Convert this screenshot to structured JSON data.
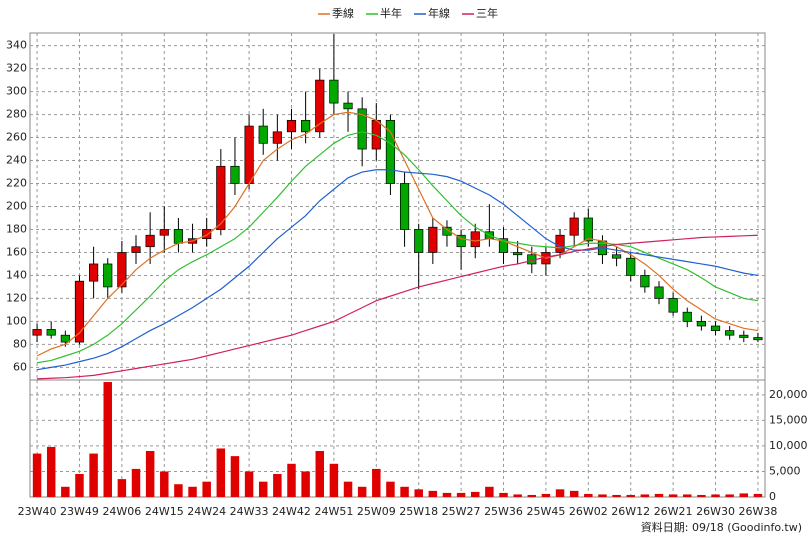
{
  "chart_data": [
    {
      "type": "candlestick",
      "categories": [
        "23W40",
        null,
        null,
        "23W49",
        null,
        null,
        "24W06",
        null,
        null,
        "24W15",
        null,
        null,
        "24W24",
        null,
        null,
        "24W33",
        null,
        null,
        "24W42",
        null,
        null,
        "24W51",
        null,
        null,
        "25W09",
        null,
        null,
        "25W18",
        null,
        null,
        "25W27",
        null,
        null,
        "25W36",
        null,
        null,
        "25W45",
        null,
        null,
        "26W02",
        null,
        null,
        "26W12",
        null,
        null,
        "26W21",
        null,
        null,
        "26W30",
        null,
        null,
        "26W38"
      ],
      "open": [
        88,
        93,
        88,
        82,
        135,
        150,
        130,
        160,
        165,
        175,
        180,
        168,
        172,
        180,
        235,
        220,
        270,
        255,
        265,
        275,
        265,
        310,
        290,
        285,
        250,
        275,
        220,
        180,
        160,
        182,
        175,
        165,
        178,
        172,
        160,
        158,
        150,
        160,
        175,
        190,
        170,
        158,
        155,
        140,
        130,
        120,
        108,
        100,
        96,
        92,
        88,
        86
      ],
      "high": [
        98,
        100,
        92,
        140,
        165,
        155,
        170,
        175,
        195,
        200,
        190,
        185,
        190,
        250,
        260,
        280,
        285,
        280,
        285,
        300,
        320,
        350,
        300,
        295,
        290,
        280,
        230,
        185,
        190,
        188,
        180,
        185,
        202,
        182,
        170,
        165,
        165,
        180,
        195,
        198,
        175,
        165,
        160,
        145,
        135,
        125,
        112,
        105,
        100,
        96,
        92,
        90
      ],
      "low": [
        82,
        85,
        78,
        80,
        120,
        120,
        125,
        150,
        150,
        160,
        160,
        160,
        165,
        175,
        210,
        215,
        245,
        240,
        250,
        255,
        260,
        280,
        265,
        235,
        240,
        210,
        165,
        128,
        150,
        165,
        145,
        155,
        165,
        150,
        150,
        142,
        140,
        155,
        165,
        165,
        150,
        148,
        135,
        125,
        115,
        105,
        95,
        92,
        88,
        84,
        82,
        82
      ],
      "close": [
        93,
        88,
        82,
        135,
        150,
        130,
        160,
        165,
        175,
        180,
        168,
        172,
        180,
        235,
        220,
        270,
        255,
        265,
        275,
        265,
        310,
        290,
        285,
        250,
        275,
        220,
        180,
        160,
        182,
        175,
        165,
        178,
        172,
        160,
        158,
        150,
        160,
        175,
        190,
        170,
        158,
        155,
        140,
        130,
        120,
        108,
        100,
        96,
        92,
        88,
        86,
        84
      ],
      "up_color": "#e00000",
      "down_color": "#00a800",
      "series": [
        {
          "name": "季線",
          "color": "#e07020",
          "values": [
            70,
            76,
            80,
            90,
            105,
            120,
            132,
            145,
            155,
            162,
            168,
            170,
            175,
            185,
            200,
            220,
            240,
            250,
            258,
            263,
            272,
            280,
            282,
            280,
            275,
            265,
            240,
            215,
            190,
            180,
            172,
            170,
            172,
            170,
            165,
            160,
            155,
            158,
            165,
            172,
            170,
            165,
            158,
            150,
            140,
            128,
            118,
            110,
            102,
            98,
            94,
            92
          ]
        },
        {
          "name": "半年",
          "color": "#30c030",
          "values": [
            64,
            66,
            70,
            74,
            80,
            88,
            98,
            110,
            122,
            135,
            145,
            152,
            158,
            165,
            172,
            182,
            195,
            208,
            222,
            235,
            245,
            255,
            262,
            265,
            262,
            255,
            245,
            232,
            218,
            205,
            192,
            182,
            175,
            170,
            168,
            166,
            165,
            164,
            166,
            168,
            168,
            167,
            165,
            160,
            155,
            150,
            145,
            138,
            130,
            125,
            120,
            118
          ]
        },
        {
          "name": "年線",
          "color": "#2060d0",
          "values": [
            58,
            60,
            62,
            65,
            68,
            72,
            78,
            85,
            92,
            98,
            105,
            112,
            120,
            128,
            138,
            148,
            160,
            172,
            182,
            192,
            205,
            215,
            225,
            230,
            232,
            232,
            230,
            229,
            228,
            226,
            222,
            216,
            210,
            202,
            192,
            182,
            172,
            165,
            162,
            162,
            164,
            162,
            160,
            158,
            156,
            154,
            152,
            150,
            148,
            145,
            142,
            140
          ]
        },
        {
          "name": "三年",
          "color": "#d02060",
          "values": [
            50,
            50.5,
            51,
            52,
            53,
            55,
            57,
            59,
            61,
            63,
            65,
            67,
            70,
            73,
            76,
            79,
            82,
            85,
            88,
            92,
            96,
            100,
            106,
            112,
            118,
            122,
            126,
            130,
            133,
            136,
            139,
            142,
            145,
            148,
            150,
            153,
            156,
            158,
            161,
            163,
            165,
            167,
            168,
            169,
            170,
            171,
            172,
            173,
            173.5,
            174,
            174.5,
            175
          ]
        }
      ],
      "ylim": [
        49,
        351
      ],
      "yticks": [
        60,
        80,
        100,
        120,
        140,
        160,
        180,
        200,
        220,
        240,
        260,
        280,
        300,
        320,
        340
      ],
      "grid": true
    },
    {
      "type": "bar",
      "color": "#e00000",
      "values": [
        8500,
        9800,
        2000,
        4500,
        8500,
        22500,
        3500,
        5500,
        9000,
        5000,
        2500,
        2000,
        3000,
        9500,
        8000,
        5000,
        3000,
        4500,
        6500,
        5000,
        9000,
        6500,
        3000,
        2000,
        5500,
        3000,
        2000,
        1500,
        1200,
        800,
        800,
        1000,
        2000,
        800,
        500,
        400,
        600,
        1500,
        1200,
        600,
        500,
        400,
        400,
        500,
        600,
        500,
        500,
        400,
        500,
        500,
        700,
        600
      ],
      "ylim": [
        0,
        22900
      ],
      "yticks": [
        0,
        {
          "value": 5000,
          "label": "5,000"
        },
        {
          "value": 10000,
          "label": "10,000"
        },
        {
          "value": 15000,
          "label": "15,000"
        },
        {
          "value": 20000,
          "label": "20,000"
        }
      ],
      "grid": true
    }
  ],
  "footer": "資料日期: 09/18  (Goodinfo.tw)"
}
